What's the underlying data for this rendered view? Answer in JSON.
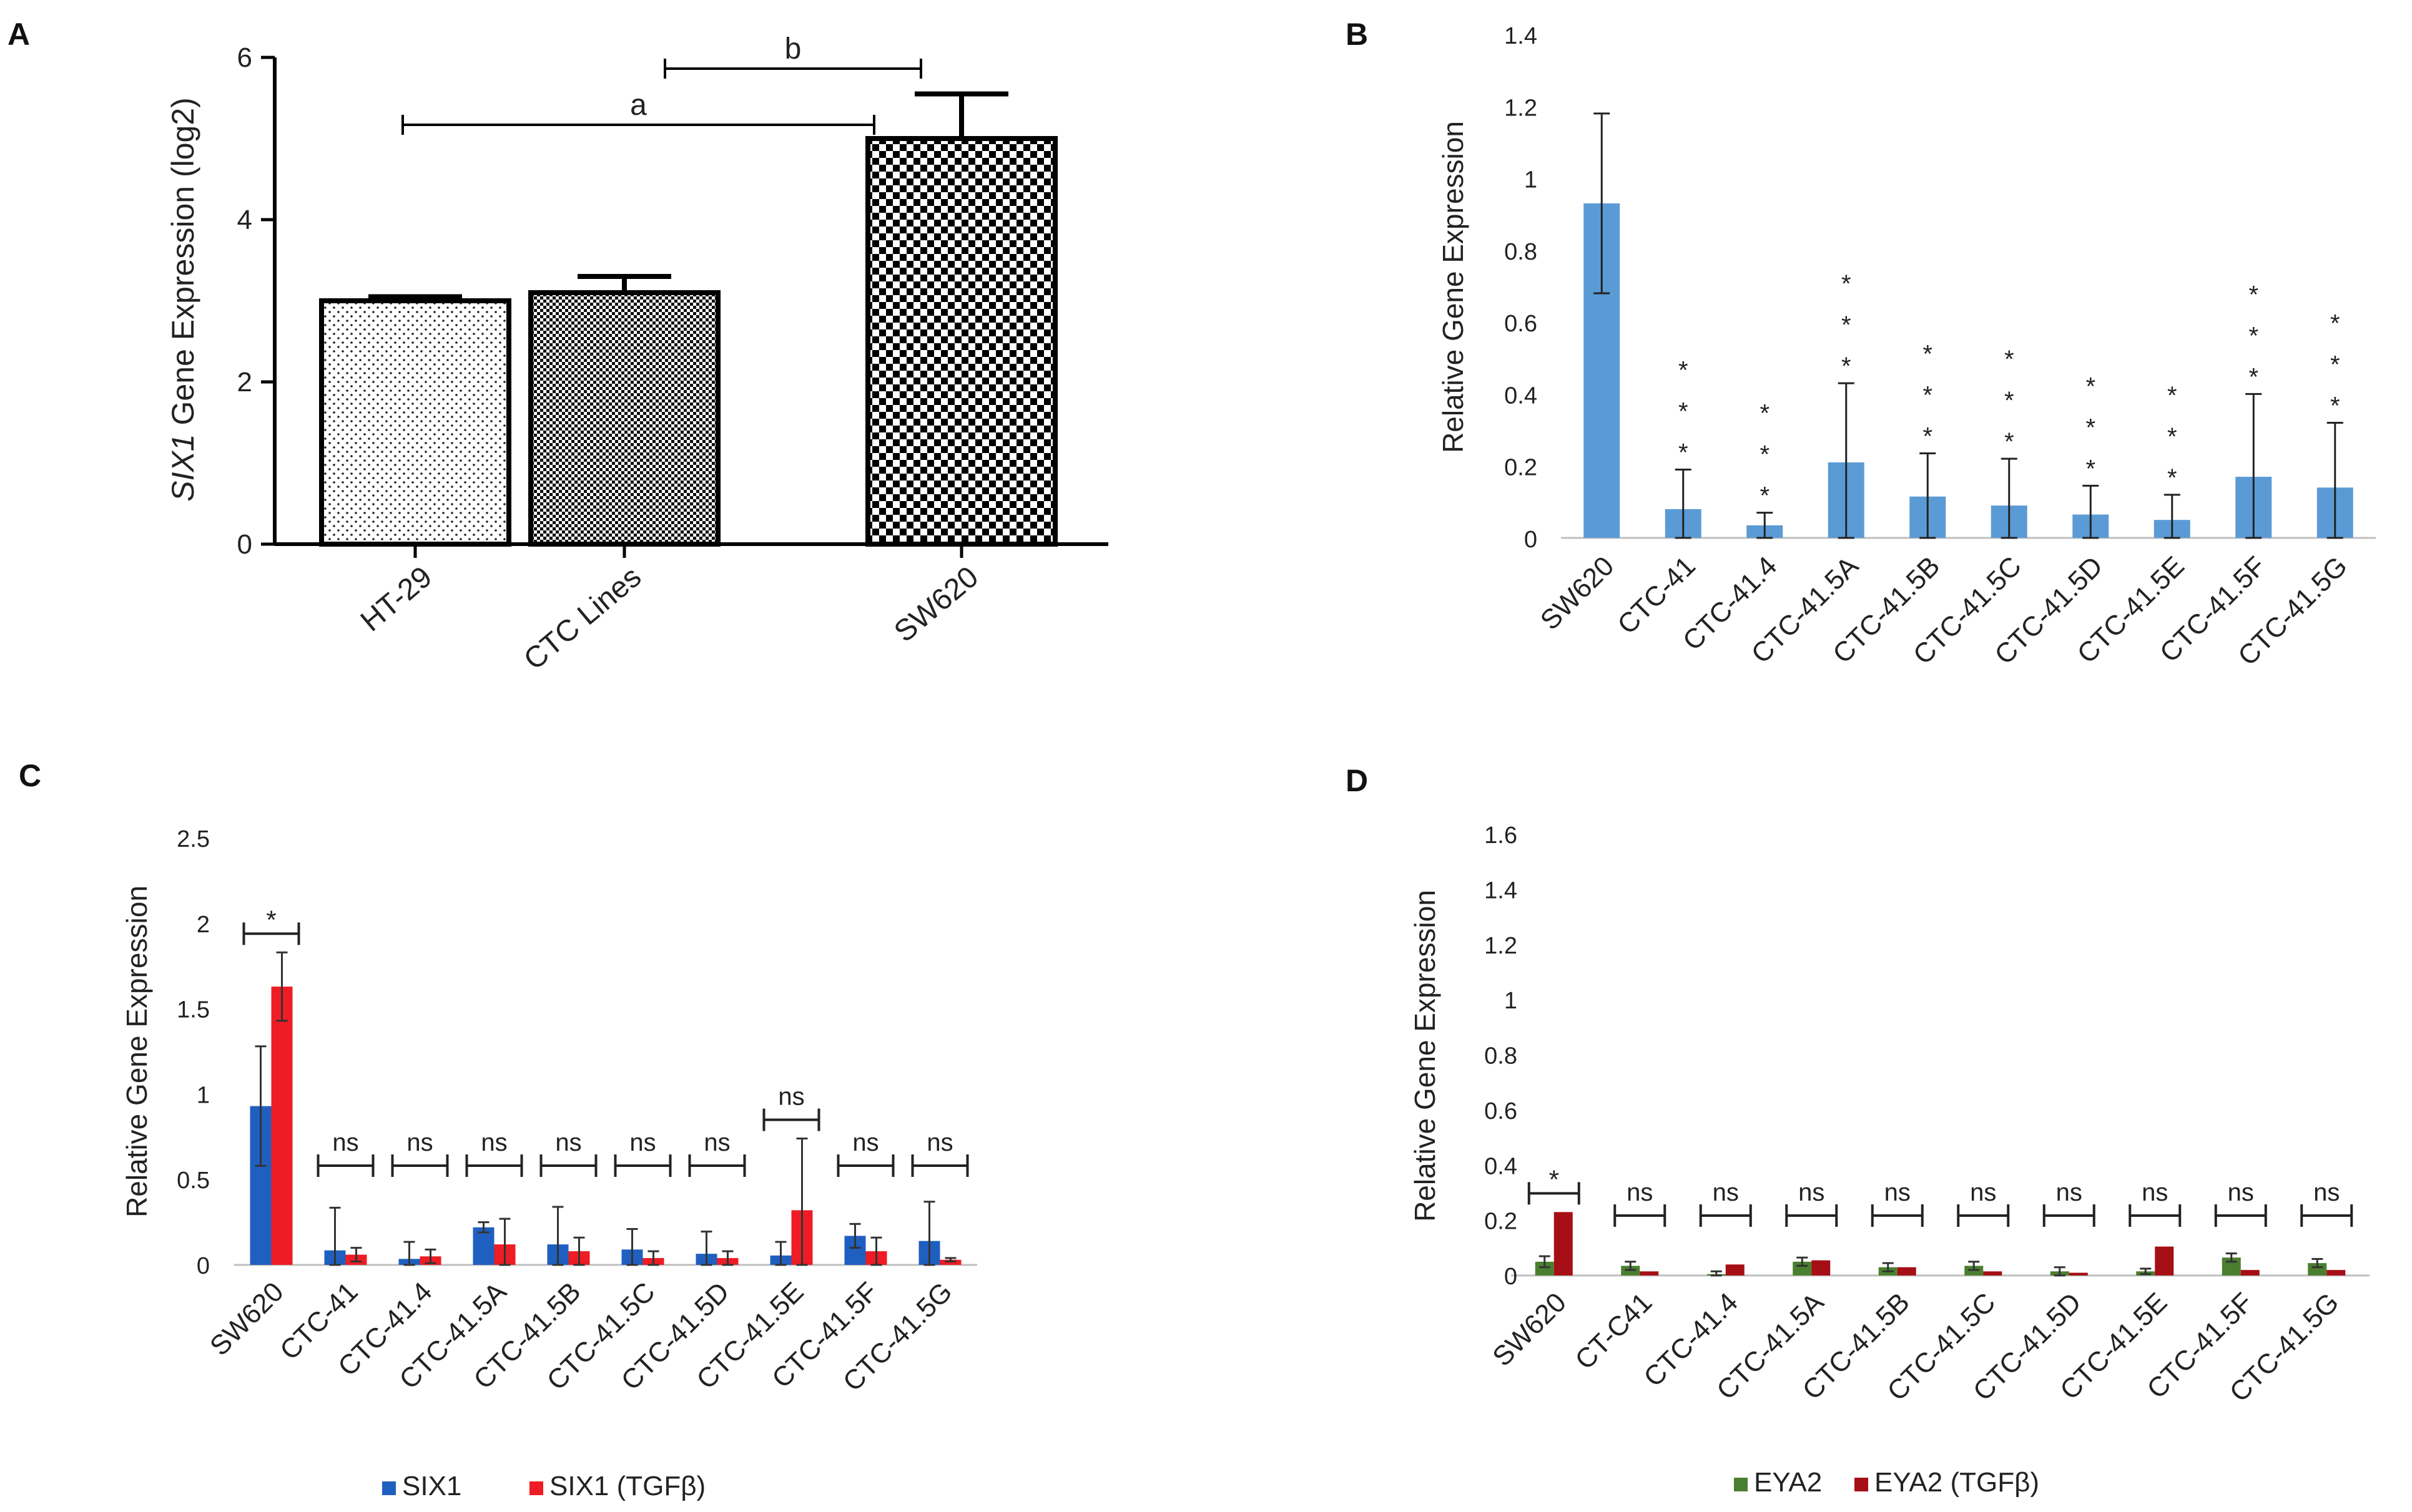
{
  "panel_labels": [
    "A",
    "B",
    "C",
    "D"
  ],
  "chart_data": [
    {
      "panel": "A",
      "type": "bar",
      "title": "",
      "ylabel_italic": "SIX1",
      "ylabel_rest": " Gene Expression (log2)",
      "xlabel": "",
      "categories": [
        "HT-29",
        "CTC Lines",
        "SW620"
      ],
      "values": [
        3.0,
        3.1,
        5.0
      ],
      "errors": [
        0.05,
        0.2,
        0.55
      ],
      "patterns": [
        "dots",
        "fine-check",
        "coarse-check"
      ],
      "ylim": [
        0,
        6
      ],
      "yticks": [
        "0",
        "2",
        "4",
        "6"
      ],
      "brackets": [
        {
          "label": "a",
          "from": 0,
          "to": 2
        },
        {
          "label": "b",
          "from": 1,
          "to": 2
        }
      ]
    },
    {
      "panel": "B",
      "type": "bar",
      "title": "",
      "ylabel": "Relative Gene Expression",
      "xlabel": "",
      "categories": [
        "SW620",
        "CTC-41",
        "CTC-41.4",
        "CTC-41.5A",
        "CTC-41.5B",
        "CTC-41.5C",
        "CTC-41.5D",
        "CTC-41.5E",
        "CTC-41.5F",
        "CTC-41.5G"
      ],
      "values": [
        0.93,
        0.08,
        0.035,
        0.21,
        0.115,
        0.09,
        0.065,
        0.05,
        0.17,
        0.14
      ],
      "errors": [
        0.25,
        0.11,
        0.035,
        0.22,
        0.12,
        0.13,
        0.08,
        0.07,
        0.23,
        0.18
      ],
      "color": "#5b9bd5",
      "ylim": [
        0,
        1.4
      ],
      "yticks": [
        "0",
        "0.2",
        "0.4",
        "0.6",
        "0.8",
        "1",
        "1.2",
        "1.4"
      ],
      "sig_mark": "*",
      "sig_categories": [
        1,
        2,
        3,
        4,
        5,
        6,
        7,
        8,
        9
      ]
    },
    {
      "panel": "C",
      "type": "bar",
      "title": "",
      "ylabel": "Relative Gene Expression",
      "xlabel": "",
      "categories": [
        "SW620",
        "CTC-41",
        "CTC-41.4",
        "CTC-41.5A",
        "CTC-41.5B",
        "CTC-41.5C",
        "CTC-41.5D",
        "CTC-41.5E",
        "CTC-41.5F",
        "CTC-41.5G"
      ],
      "series": [
        {
          "name": "SIX1",
          "color": "#1f5fbf",
          "values": [
            0.93,
            0.085,
            0.035,
            0.22,
            0.12,
            0.09,
            0.065,
            0.055,
            0.17,
            0.14
          ],
          "errors": [
            0.35,
            0.25,
            0.1,
            0.03,
            0.22,
            0.12,
            0.13,
            0.08,
            0.07,
            0.23
          ]
        },
        {
          "name": "SIX1 (TGFβ)",
          "color": "#ee1c24",
          "values": [
            1.63,
            0.06,
            0.05,
            0.12,
            0.08,
            0.04,
            0.04,
            0.32,
            0.08,
            0.03
          ],
          "errors": [
            0.2,
            0.04,
            0.04,
            0.15,
            0.08,
            0.04,
            0.04,
            0.42,
            0.08,
            0.01
          ]
        }
      ],
      "ylim": [
        0,
        2.5
      ],
      "yticks": [
        "0",
        "0.5",
        "1",
        "1.5",
        "2",
        "2.5"
      ],
      "significance": [
        "*",
        "ns",
        "ns",
        "ns",
        "ns",
        "ns",
        "ns",
        "ns",
        "ns",
        "ns"
      ]
    },
    {
      "panel": "D",
      "type": "bar",
      "title": "",
      "ylabel": "Relative Gene Expression",
      "xlabel": "",
      "categories": [
        "SW620",
        "CT-C41",
        "CTC-41.4",
        "CTC-41.5A",
        "CTC-41.5B",
        "CTC-41.5C",
        "CTC-41.5D",
        "CTC-41.5E",
        "CTC-41.5F",
        "CTC-41.5G"
      ],
      "series": [
        {
          "name": "EYA2",
          "color": "#4a7f2f",
          "values": [
            0.05,
            0.035,
            0.005,
            0.05,
            0.03,
            0.035,
            0.015,
            0.015,
            0.065,
            0.045
          ],
          "errors": [
            0.02,
            0.015,
            0.01,
            0.015,
            0.015,
            0.015,
            0.015,
            0.01,
            0.015,
            0.015
          ]
        },
        {
          "name": "EYA2 (TGFβ)",
          "color": "#a50f15",
          "values": [
            0.23,
            0.015,
            0.04,
            0.055,
            0.03,
            0.015,
            0.01,
            0.105,
            0.02,
            0.02
          ]
        }
      ],
      "ylim": [
        0,
        1.6
      ],
      "yticks": [
        "0",
        "0.2",
        "0.4",
        "0.6",
        "0.8",
        "1",
        "1.2",
        "1.4",
        "1.6"
      ],
      "significance": [
        "*",
        "ns",
        "ns",
        "ns",
        "ns",
        "ns",
        "ns",
        "ns",
        "ns",
        "ns"
      ]
    }
  ]
}
